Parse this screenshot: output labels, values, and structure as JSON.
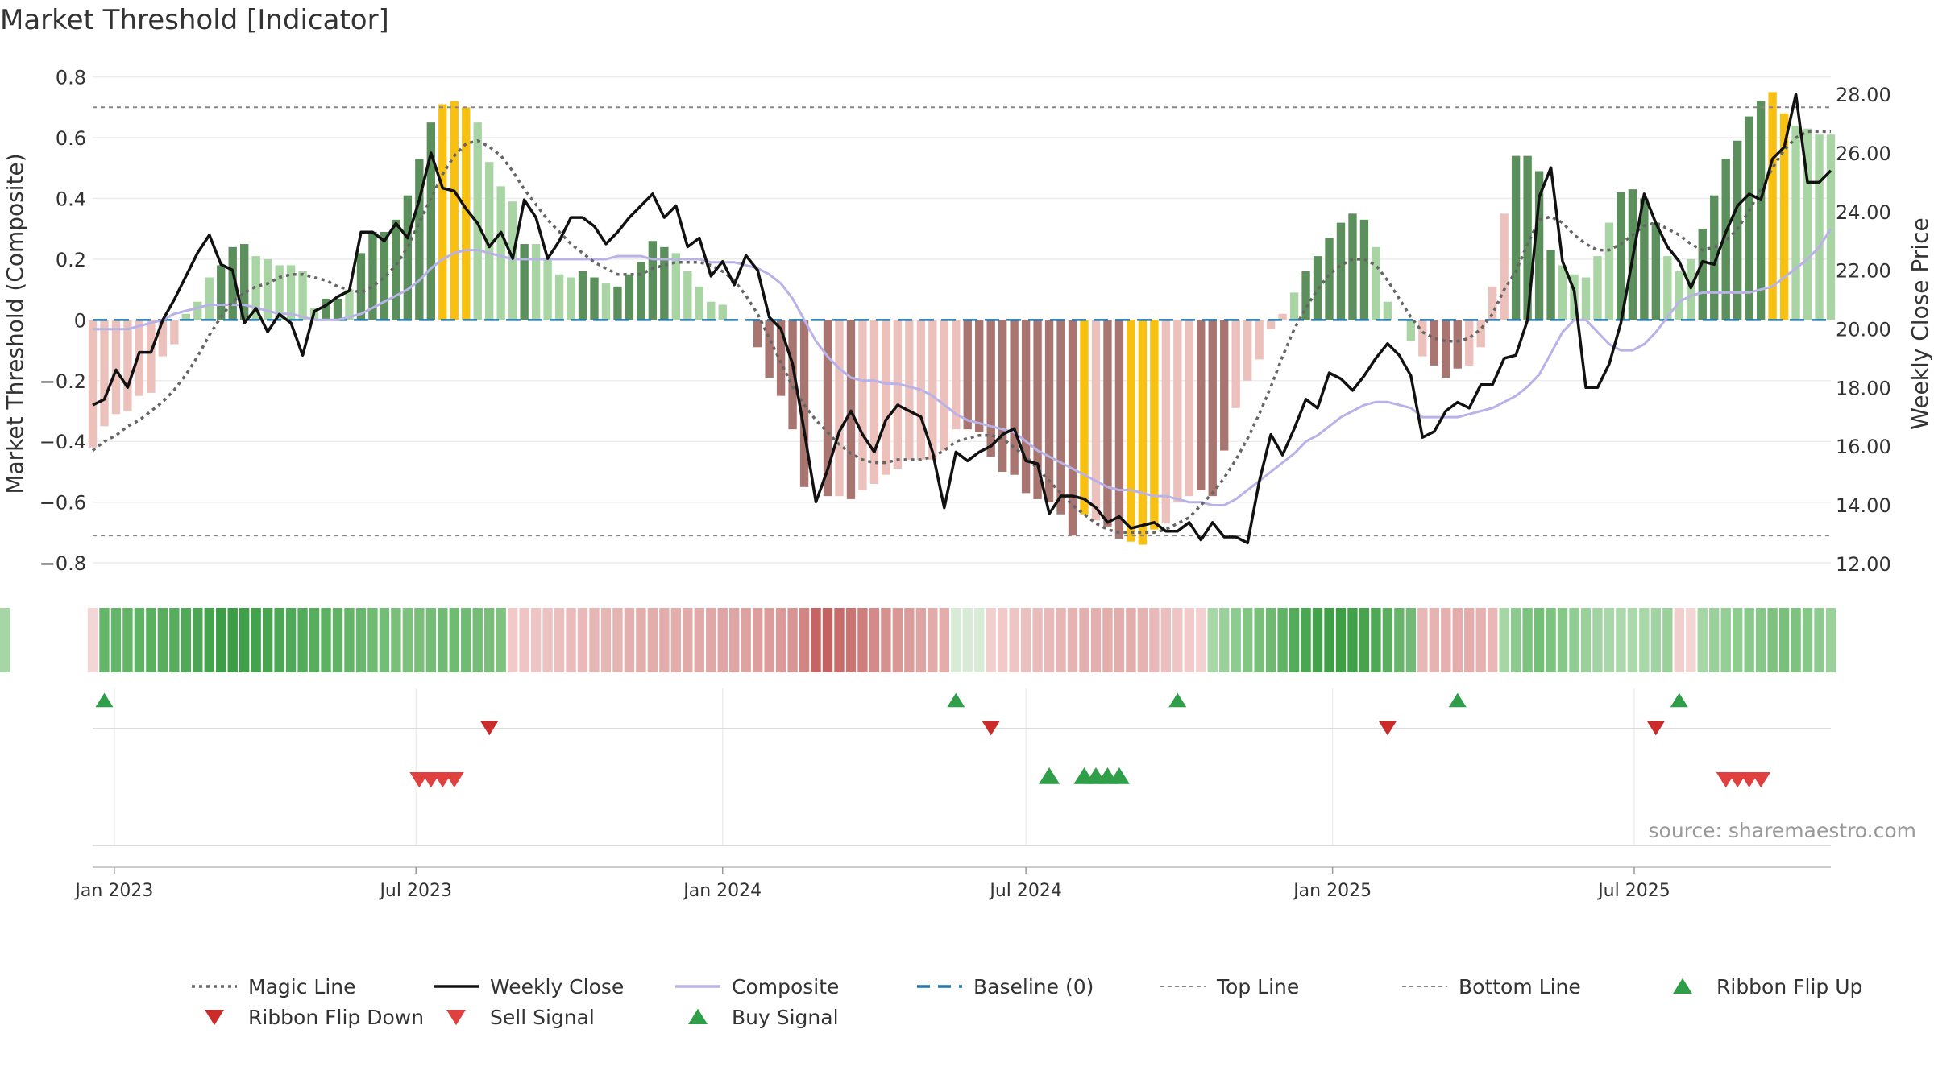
{
  "title": "Market Threshold [Indicator]",
  "source": "source: sharemaestro.com",
  "chart_data": {
    "type": "bar",
    "title": "Market Threshold [Indicator]",
    "ylabel_left": "Market Threshold (Composite)",
    "ylabel_right": "Weekly Close Price",
    "ylim_left": [
      -0.85,
      0.82
    ],
    "ylim_right": [
      11.5,
      28.8
    ],
    "yticks_left": [
      0.8,
      0.6,
      0.4,
      0.2,
      0,
      -0.2,
      -0.4,
      -0.6,
      -0.8
    ],
    "yticks_left_labels": [
      "0.8",
      "0.6",
      "0.4",
      "0.2",
      "0",
      "−0.2",
      "−0.4",
      "−0.6",
      "−0.8"
    ],
    "yticks_right": [
      28,
      26,
      24,
      22,
      20,
      18,
      16,
      14,
      12
    ],
    "yticks_right_labels": [
      "28.00",
      "26.00",
      "24.00",
      "22.00",
      "20.00",
      "18.00",
      "16.00",
      "14.00",
      "12.00"
    ],
    "x_start": "2022-12-19",
    "x_end": "2025-10-27",
    "xticks": [
      {
        "date": "2023-01-01",
        "label": "Jan 2023"
      },
      {
        "date": "2023-07-01",
        "label": "Jul 2023"
      },
      {
        "date": "2024-01-01",
        "label": "Jan 2024"
      },
      {
        "date": "2024-07-01",
        "label": "Jul 2024"
      },
      {
        "date": "2025-01-01",
        "label": "Jan 2025"
      },
      {
        "date": "2025-07-01",
        "label": "Jul 2025"
      }
    ],
    "top_line": 0.7,
    "bottom_line": -0.71,
    "grid": true,
    "colors": {
      "pos_strong": "#5b8f5b",
      "pos_weak": "#a9d4a3",
      "neg_strong": "#a87570",
      "neg_weak": "#ecc1bc",
      "extreme": "#f8c010",
      "weekly_close": "#111111",
      "magic_line": "#666666",
      "composite": "#b9b2e8",
      "baseline": "#1f77b4",
      "flip_up": "#2e9e48",
      "flip_down": "#cc2b2b",
      "sell": "#e0413f",
      "buy": "#2e9e48"
    },
    "composite_bars": [
      -0.42,
      -0.35,
      -0.31,
      -0.3,
      -0.25,
      -0.24,
      -0.12,
      -0.08,
      0.02,
      0.06,
      0.14,
      0.18,
      0.24,
      0.25,
      0.21,
      0.2,
      0.18,
      0.18,
      0.16,
      0.04,
      0.07,
      0.07,
      0.1,
      0.22,
      0.29,
      0.29,
      0.33,
      0.41,
      0.53,
      0.65,
      0.71,
      0.72,
      0.7,
      0.65,
      0.52,
      0.44,
      0.39,
      0.25,
      0.25,
      0.2,
      0.15,
      0.14,
      0.16,
      0.14,
      0.12,
      0.11,
      0.15,
      0.19,
      0.26,
      0.24,
      0.22,
      0.16,
      0.11,
      0.06,
      0.05,
      0.0,
      0.0,
      -0.09,
      -0.19,
      -0.25,
      -0.36,
      -0.55,
      0.0,
      -0.58,
      -0.58,
      -0.59,
      -0.56,
      -0.54,
      -0.51,
      -0.49,
      -0.46,
      -0.46,
      -0.46,
      -0.43,
      -0.36,
      -0.36,
      -0.37,
      -0.45,
      -0.5,
      -0.51,
      -0.57,
      -0.59,
      -0.6,
      -0.64,
      -0.71,
      -0.64,
      -0.66,
      -0.68,
      -0.72,
      -0.73,
      -0.74,
      -0.69,
      -0.67,
      -0.6,
      -0.58,
      -0.56,
      -0.58,
      -0.43,
      -0.29,
      -0.2,
      -0.13,
      -0.03,
      0.02,
      0.09,
      0.16,
      0.21,
      0.27,
      0.32,
      0.35,
      0.33,
      0.24,
      0.06,
      0.0,
      -0.07,
      -0.12,
      -0.15,
      -0.19,
      -0.16,
      -0.15,
      -0.09,
      0.11,
      0.35,
      0.54,
      0.54,
      0.49,
      0.23,
      0.18,
      0.15,
      0.14,
      0.21,
      0.32,
      0.42,
      0.43,
      0.4,
      0.32,
      0.21,
      0.16,
      0.2,
      0.3,
      0.41,
      0.53,
      0.59,
      0.67,
      0.72,
      0.75,
      0.68,
      0.64,
      0.63,
      0.61,
      0.61
    ],
    "bar_styles": [
      "nw",
      "nw",
      "nw",
      "nw",
      "nw",
      "nw",
      "nw",
      "nw",
      "pw",
      "pw",
      "pw",
      "ps",
      "ps",
      "ps",
      "pw",
      "pw",
      "pw",
      "pw",
      "pw",
      "pw",
      "ps",
      "ps",
      "pw",
      "ps",
      "ps",
      "ps",
      "ps",
      "ps",
      "ps",
      "ps",
      "y",
      "y",
      "y",
      "pw",
      "pw",
      "pw",
      "pw",
      "ps",
      "pw",
      "pw",
      "pw",
      "pw",
      "ps",
      "ps",
      "pw",
      "ps",
      "ps",
      "ps",
      "ps",
      "ps",
      "pw",
      "pw",
      "pw",
      "pw",
      "pw",
      "pw",
      "pw",
      "ns",
      "ns",
      "ns",
      "ns",
      "ns",
      "nw",
      "ns",
      "nw",
      "ns",
      "nw",
      "nw",
      "nw",
      "nw",
      "nw",
      "nw",
      "nw",
      "nw",
      "nw",
      "ns",
      "ns",
      "ns",
      "ns",
      "ns",
      "ns",
      "ns",
      "ns",
      "ns",
      "ns",
      "y",
      "nw",
      "ns",
      "ns",
      "y",
      "y",
      "y",
      "nw",
      "nw",
      "nw",
      "ns",
      "ns",
      "ns",
      "nw",
      "nw",
      "nw",
      "nw",
      "nw",
      "pw",
      "ps",
      "ps",
      "ps",
      "ps",
      "ps",
      "ps",
      "pw",
      "pw",
      "pw",
      "pw",
      "nw",
      "ns",
      "ns",
      "ns",
      "nw",
      "nw",
      "nw",
      "nw",
      "ps",
      "ps",
      "ps",
      "ps",
      "pw",
      "pw",
      "pw",
      "pw",
      "pw",
      "ps",
      "ps",
      "ps",
      "ps",
      "pw",
      "pw",
      "pw",
      "ps",
      "ps",
      "ps",
      "ps",
      "ps",
      "ps",
      "y",
      "y",
      "pw",
      "pw",
      "pw",
      "pw"
    ],
    "weekly_close": [
      17.4,
      17.6,
      18.6,
      18.0,
      19.2,
      19.2,
      20.3,
      21.0,
      21.8,
      22.6,
      23.2,
      22.2,
      22.0,
      20.2,
      20.7,
      19.9,
      20.5,
      20.2,
      19.1,
      20.6,
      20.8,
      21.1,
      21.3,
      23.3,
      23.3,
      23.0,
      23.6,
      23.1,
      24.4,
      26.0,
      24.8,
      24.7,
      24.1,
      23.6,
      22.8,
      23.3,
      22.4,
      24.4,
      23.8,
      22.4,
      23.0,
      23.8,
      23.8,
      23.5,
      22.9,
      23.3,
      23.8,
      24.2,
      24.6,
      23.8,
      24.2,
      22.8,
      23.1,
      21.8,
      22.3,
      21.5,
      22.5,
      22.0,
      20.4,
      20.0,
      18.8,
      16.5,
      14.1,
      15.2,
      16.5,
      17.2,
      16.4,
      15.8,
      16.9,
      17.4,
      17.2,
      17.0,
      15.8,
      13.9,
      15.8,
      15.5,
      15.8,
      16.0,
      16.4,
      16.6,
      15.5,
      15.4,
      13.7,
      14.3,
      14.3,
      14.2,
      13.9,
      13.4,
      13.6,
      13.2,
      13.3,
      13.4,
      13.1,
      13.1,
      13.4,
      12.8,
      13.4,
      12.9,
      12.9,
      12.7,
      14.8,
      16.4,
      15.7,
      16.6,
      17.6,
      17.3,
      18.5,
      18.3,
      17.9,
      18.4,
      19.0,
      19.5,
      19.1,
      18.4,
      16.3,
      16.5,
      17.2,
      17.5,
      17.3,
      18.1,
      18.1,
      19.0,
      19.1,
      20.3,
      24.5,
      25.5,
      22.3,
      21.3,
      18.0,
      18.0,
      18.8,
      20.2,
      22.4,
      24.6,
      23.6,
      22.8,
      22.3,
      21.4,
      22.3,
      22.2,
      23.3,
      24.2,
      24.6,
      24.4,
      25.8,
      26.2,
      28.0,
      25.0,
      25.0,
      25.4,
      25.3
    ],
    "magic_line": [
      -0.43,
      -0.4,
      -0.38,
      -0.35,
      -0.33,
      -0.3,
      -0.27,
      -0.23,
      -0.18,
      -0.12,
      -0.05,
      0.01,
      0.06,
      0.09,
      0.11,
      0.12,
      0.14,
      0.15,
      0.15,
      0.14,
      0.13,
      0.11,
      0.1,
      0.09,
      0.11,
      0.14,
      0.18,
      0.24,
      0.32,
      0.4,
      0.48,
      0.54,
      0.58,
      0.59,
      0.57,
      0.54,
      0.49,
      0.43,
      0.38,
      0.33,
      0.29,
      0.25,
      0.22,
      0.19,
      0.17,
      0.15,
      0.15,
      0.15,
      0.17,
      0.18,
      0.19,
      0.19,
      0.19,
      0.18,
      0.16,
      0.13,
      0.08,
      0.02,
      -0.06,
      -0.14,
      -0.22,
      -0.28,
      -0.33,
      -0.37,
      -0.41,
      -0.44,
      -0.46,
      -0.47,
      -0.47,
      -0.46,
      -0.46,
      -0.46,
      -0.45,
      -0.43,
      -0.4,
      -0.39,
      -0.38,
      -0.38,
      -0.39,
      -0.42,
      -0.45,
      -0.49,
      -0.53,
      -0.57,
      -0.61,
      -0.64,
      -0.67,
      -0.69,
      -0.7,
      -0.7,
      -0.7,
      -0.7,
      -0.69,
      -0.67,
      -0.65,
      -0.61,
      -0.57,
      -0.52,
      -0.46,
      -0.39,
      -0.31,
      -0.22,
      -0.12,
      -0.03,
      0.04,
      0.1,
      0.15,
      0.18,
      0.2,
      0.2,
      0.18,
      0.13,
      0.07,
      0.01,
      -0.04,
      -0.06,
      -0.07,
      -0.07,
      -0.06,
      -0.03,
      0.02,
      0.1,
      0.16,
      0.25,
      0.33,
      0.34,
      0.32,
      0.28,
      0.25,
      0.23,
      0.23,
      0.25,
      0.28,
      0.31,
      0.32,
      0.3,
      0.28,
      0.25,
      0.23,
      0.24,
      0.26,
      0.3,
      0.36,
      0.43,
      0.5,
      0.56,
      0.6,
      0.62,
      0.62,
      0.62
    ],
    "composite_line": [
      -0.03,
      -0.03,
      -0.03,
      -0.03,
      -0.02,
      -0.01,
      0.0,
      0.02,
      0.03,
      0.04,
      0.05,
      0.05,
      0.05,
      0.05,
      0.04,
      0.03,
      0.02,
      0.02,
      0.01,
      0.0,
      0.0,
      0.0,
      0.01,
      0.02,
      0.04,
      0.06,
      0.08,
      0.1,
      0.13,
      0.17,
      0.2,
      0.22,
      0.23,
      0.23,
      0.22,
      0.21,
      0.2,
      0.2,
      0.2,
      0.2,
      0.2,
      0.2,
      0.2,
      0.2,
      0.2,
      0.21,
      0.21,
      0.21,
      0.2,
      0.2,
      0.2,
      0.2,
      0.2,
      0.19,
      0.19,
      0.19,
      0.18,
      0.17,
      0.15,
      0.12,
      0.07,
      0.0,
      -0.07,
      -0.12,
      -0.16,
      -0.19,
      -0.2,
      -0.2,
      -0.21,
      -0.21,
      -0.22,
      -0.23,
      -0.25,
      -0.28,
      -0.31,
      -0.33,
      -0.34,
      -0.35,
      -0.36,
      -0.37,
      -0.4,
      -0.43,
      -0.45,
      -0.47,
      -0.49,
      -0.51,
      -0.53,
      -0.55,
      -0.56,
      -0.56,
      -0.57,
      -0.58,
      -0.58,
      -0.59,
      -0.6,
      -0.6,
      -0.61,
      -0.61,
      -0.59,
      -0.56,
      -0.53,
      -0.5,
      -0.47,
      -0.44,
      -0.4,
      -0.38,
      -0.35,
      -0.32,
      -0.3,
      -0.28,
      -0.27,
      -0.27,
      -0.28,
      -0.29,
      -0.32,
      -0.32,
      -0.32,
      -0.32,
      -0.31,
      -0.3,
      -0.29,
      -0.27,
      -0.25,
      -0.22,
      -0.18,
      -0.11,
      -0.04,
      0.0,
      0.0,
      -0.04,
      -0.08,
      -0.1,
      -0.1,
      -0.08,
      -0.04,
      0.01,
      0.06,
      0.08,
      0.09,
      0.09,
      0.09,
      0.09,
      0.09,
      0.1,
      0.11,
      0.14,
      0.17,
      0.2,
      0.24,
      0.3,
      0.32,
      0.33,
      0.34,
      0.35
    ],
    "ribbon": [
      "#f3d6d5",
      "#64b668",
      "#64b668",
      "#63b467",
      "#5fb364",
      "#5bb060",
      "#59ae5e",
      "#56ad5b",
      "#4fa956",
      "#4aa652",
      "#44a34d",
      "#3b9d45",
      "#3b9d45",
      "#3fa049",
      "#43a34c",
      "#47a550",
      "#4ba753",
      "#4eaa56",
      "#52ab59",
      "#57ae5d",
      "#5db162",
      "#60b265",
      "#64b568",
      "#6ab86d",
      "#6ebb71",
      "#74bd76",
      "#79bf7a",
      "#7cc17d",
      "#79bf7a",
      "#74bd76",
      "#70bb73",
      "#6ebb71",
      "#70bb73",
      "#74bd76",
      "#79bf7a",
      "#7fc280",
      "#f0c9c8",
      "#eec5c4",
      "#eec5c4",
      "#ecc2c1",
      "#ebbfbe",
      "#e9bcbb",
      "#e8b9b8",
      "#e6b6b5",
      "#e6b6b5",
      "#e5b3b2",
      "#e4b0af",
      "#e3adac",
      "#e3adac",
      "#e3adac",
      "#e3adac",
      "#e1a9a8",
      "#e1a9a8",
      "#e0a7a6",
      "#dfa5a4",
      "#dfa5a4",
      "#dea2a1",
      "#dd9f9e",
      "#dc9c9b",
      "#db9998",
      "#d99594",
      "#d18684",
      "#c56463",
      "#c46261",
      "#c86b6a",
      "#cb7573",
      "#cf7e7c",
      "#d38a88",
      "#d6918f",
      "#d99796",
      "#dc9c9b",
      "#dfa5a4",
      "#e2abaa",
      "#e3adac",
      "#d7ebd6",
      "#d7ebd6",
      "#d7ebd6",
      "#f1cfcd",
      "#efcac9",
      "#ecc5c4",
      "#eac0bf",
      "#e9bcbb",
      "#e8b9b8",
      "#e6b6b5",
      "#e5b3b2",
      "#e4b0af",
      "#e4b0af",
      "#e3adac",
      "#e3adac",
      "#e3adac",
      "#e5b3b2",
      "#e8b9b8",
      "#ebbfbe",
      "#eec5c4",
      "#f1cbca",
      "#f3d1d0",
      "#a8d8a8",
      "#9ad19b",
      "#8ecb90",
      "#83c585",
      "#78c07a",
      "#6db970",
      "#61b365",
      "#55ac5a",
      "#4aa650",
      "#42a249",
      "#3f9f46",
      "#3d9e44",
      "#41a148",
      "#47a44d",
      "#4fa855",
      "#5bae60",
      "#67b46b",
      "#73ba76",
      "#e8b8b7",
      "#e6b3b2",
      "#e5b0af",
      "#e4adac",
      "#e4adac",
      "#e6b2b1",
      "#e8b7b6",
      "#a6d6a6",
      "#8ccb8e",
      "#7bc37e",
      "#72bf75",
      "#7bc37e",
      "#86c888",
      "#90cd92",
      "#9ad19b",
      "#a2d4a3",
      "#a8d8a8",
      "#acd9ac",
      "#acd9ac",
      "#a8d8a8",
      "#a2d4a3",
      "#9ad19b",
      "#f1cfcd",
      "#f3d5d4",
      "#a6d6a6",
      "#9ad19b",
      "#94cf95",
      "#8fcc90",
      "#8ac98c",
      "#86c888",
      "#7fc280",
      "#7ac07c",
      "#7fc280",
      "#86c888",
      "#8ecb90",
      "#9ad19b",
      "#a6d6a6"
    ],
    "markers": {
      "ribbon_flip_up": [
        "2022-12-26",
        "2024-05-20",
        "2024-09-30",
        "2025-03-17",
        "2025-07-28"
      ],
      "ribbon_flip_down": [
        "2023-08-14",
        "2024-06-10",
        "2025-02-03",
        "2025-07-14"
      ],
      "sell_signal": [
        "2023-07-03",
        "2023-07-10",
        "2023-07-17",
        "2023-07-24",
        "2025-08-25",
        "2025-09-01",
        "2025-09-08",
        "2025-09-15"
      ],
      "buy_signal": [
        "2024-07-15",
        "2024-08-05",
        "2024-08-12",
        "2024-08-19",
        "2024-08-26"
      ]
    },
    "legend_position": "bottom",
    "legend": [
      {
        "label": "Magic Line",
        "style": "dotted",
        "color": "#666666"
      },
      {
        "label": "Weekly Close",
        "style": "solid",
        "color": "#111111"
      },
      {
        "label": "Composite",
        "style": "solid",
        "color": "#b9b2e8"
      },
      {
        "label": "Baseline (0)",
        "style": "dashed",
        "color": "#1f77b4"
      },
      {
        "label": "Top Line",
        "style": "dashed-thin",
        "color": "#888888"
      },
      {
        "label": "Bottom Line",
        "style": "dashed-thin",
        "color": "#888888"
      },
      {
        "label": "Ribbon Flip Up",
        "style": "tri-up",
        "color": "#2e9e48"
      },
      {
        "label": "Ribbon Flip Down",
        "style": "tri-down",
        "color": "#cc2b2b"
      },
      {
        "label": "Sell Signal",
        "style": "tri-down",
        "color": "#e0413f"
      },
      {
        "label": "Buy Signal",
        "style": "tri-up",
        "color": "#2e9e48"
      }
    ]
  }
}
